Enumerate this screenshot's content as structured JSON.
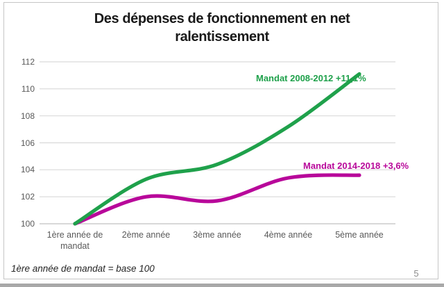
{
  "title": {
    "line1": "Des dépenses de fonctionnement en net",
    "line2": "ralentissement"
  },
  "footnote": "1ère année de mandat = base 100",
  "page_number": "5",
  "colors": {
    "green": "#1fa14b",
    "magenta": "#b8079a",
    "grid": "#d9d9d9",
    "baseline": "#c0c0c0",
    "axis_text": "#595959",
    "slide_border": "#c6c6c6",
    "bottom_strip": "#a8a8a8",
    "page_number": "#8c8c8c"
  },
  "chart_data": {
    "type": "line",
    "title": "Des dépenses de fonctionnement en net ralentissement",
    "categories": [
      "1ère année de\nmandat",
      "2ème année",
      "3ème année",
      "4ème année",
      "5ème année"
    ],
    "yticks": [
      100,
      102,
      104,
      106,
      108,
      110,
      112
    ],
    "ylim": [
      100,
      112
    ],
    "grid": true,
    "legend_position": "inline-labels",
    "baseline_note": "1ère année de mandat = base 100",
    "series": [
      {
        "name": "Mandat 2008-2012 +11,1%",
        "color": "#1fa14b",
        "values": [
          100,
          103.3,
          104.4,
          107.2,
          111.1
        ],
        "total_change_pct": "+11,1%"
      },
      {
        "name": "Mandat 2014-2018 +3,6%",
        "color": "#b8079a",
        "values": [
          100,
          102.0,
          101.7,
          103.4,
          103.6
        ],
        "total_change_pct": "+3,6%"
      }
    ]
  }
}
